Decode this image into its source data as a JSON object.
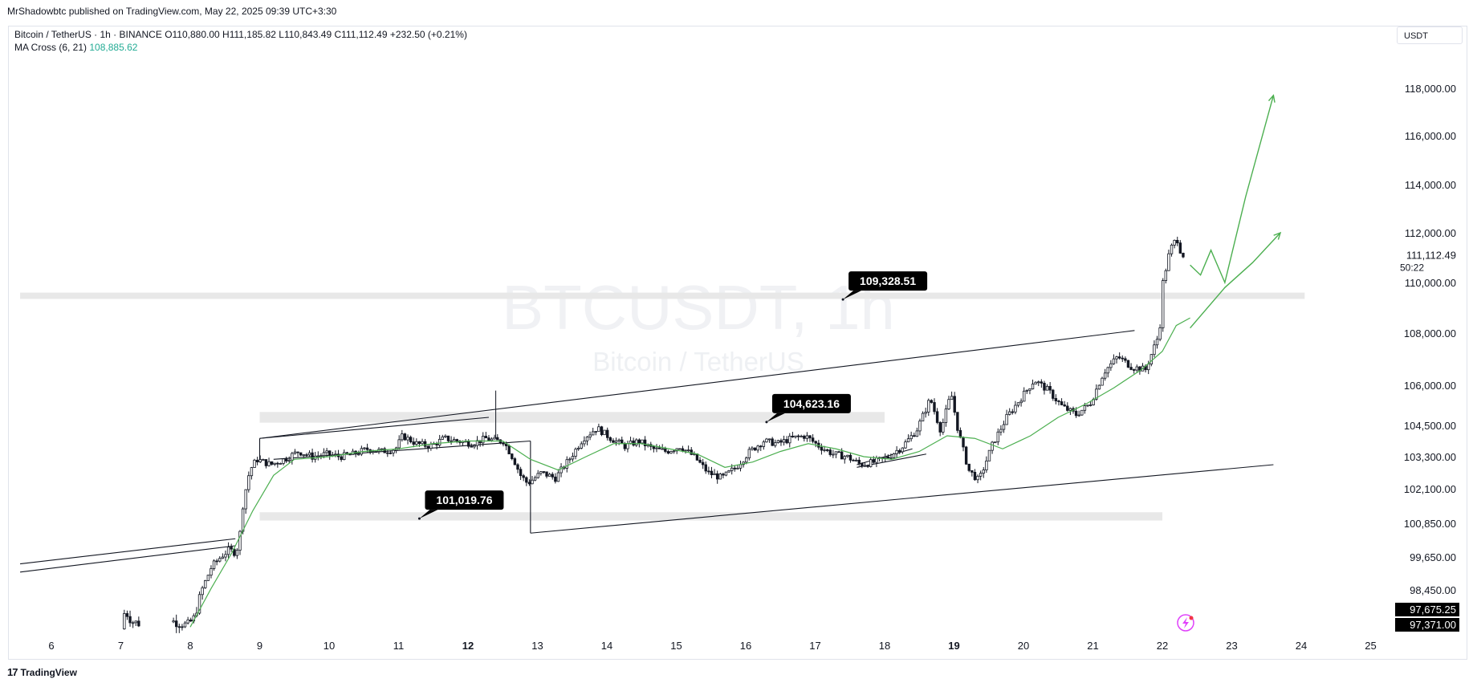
{
  "header": {
    "published": "MrShadowbtc published on TradingView.com, May 22, 2025 09:39 UTC+3:30"
  },
  "legend": {
    "symbol": "Bitcoin / TetherUS · 1h · BINANCE",
    "ohlc": "O110,880.00  H111,185.82  L110,843.49  C111,112.49  +232.50 (+0.21%)",
    "ma_label": "MA Cross (6, 21)",
    "ma_value": "108,885.62"
  },
  "currency_button": "USDT",
  "watermark": {
    "ticker": "BTCUSDT, 1h",
    "name": "Bitcoin / TetherUS"
  },
  "footer": {
    "brand": "TradingView",
    "logo": "17"
  },
  "colors": {
    "candle": "#131722",
    "ma": "#4caf50",
    "zone": "#e8e8e8",
    "label_bg": "#000000",
    "lightning": "#e040fb"
  },
  "price_labels": {
    "current": "111,112.49",
    "countdown": "50:22",
    "low_a": "97,675.25",
    "low_b": "97,371.00"
  },
  "chart_data": {
    "type": "candlestick",
    "symbol": "BTCUSDT",
    "interval": "1h",
    "y_ticks": [
      {
        "label": "118,000.00",
        "value": 118000
      },
      {
        "label": "116,000.00",
        "value": 116000
      },
      {
        "label": "114,000.00",
        "value": 114000
      },
      {
        "label": "112,000.00",
        "value": 112000
      },
      {
        "label": "110,000.00",
        "value": 110000
      },
      {
        "label": "108,000.00",
        "value": 108000
      },
      {
        "label": "106,000.00",
        "value": 106000
      },
      {
        "label": "104,500.00",
        "value": 104500
      },
      {
        "label": "103,300.00",
        "value": 103300
      },
      {
        "label": "102,100.00",
        "value": 102100
      },
      {
        "label": "100,850.00",
        "value": 100850
      },
      {
        "label": "99,650.00",
        "value": 99650
      },
      {
        "label": "98,450.00",
        "value": 98450
      }
    ],
    "x_ticks": [
      {
        "label": "6",
        "day": 6,
        "bold": false
      },
      {
        "label": "7",
        "day": 7,
        "bold": false
      },
      {
        "label": "8",
        "day": 8,
        "bold": false
      },
      {
        "label": "9",
        "day": 9,
        "bold": false
      },
      {
        "label": "10",
        "day": 10,
        "bold": false
      },
      {
        "label": "11",
        "day": 11,
        "bold": false
      },
      {
        "label": "12",
        "day": 12,
        "bold": true
      },
      {
        "label": "13",
        "day": 13,
        "bold": false
      },
      {
        "label": "14",
        "day": 14,
        "bold": false
      },
      {
        "label": "15",
        "day": 15,
        "bold": false
      },
      {
        "label": "16",
        "day": 16,
        "bold": false
      },
      {
        "label": "17",
        "day": 17,
        "bold": false
      },
      {
        "label": "18",
        "day": 18,
        "bold": false
      },
      {
        "label": "19",
        "day": 19,
        "bold": true
      },
      {
        "label": "20",
        "day": 20,
        "bold": false
      },
      {
        "label": "21",
        "day": 21,
        "bold": false
      },
      {
        "label": "22",
        "day": 22,
        "bold": false
      },
      {
        "label": "23",
        "day": 23,
        "bold": false
      },
      {
        "label": "24",
        "day": 24,
        "bold": false
      },
      {
        "label": "25",
        "day": 25,
        "bold": false
      }
    ],
    "price_path": [
      [
        7.05,
        97400
      ],
      [
        7.1,
        97900
      ],
      [
        7.2,
        97600
      ],
      [
        7.4,
        97500
      ],
      [
        7.6,
        97550
      ],
      [
        7.8,
        97600
      ],
      [
        8.0,
        97500
      ],
      [
        8.1,
        97700
      ],
      [
        8.2,
        98400
      ],
      [
        8.35,
        99300
      ],
      [
        8.5,
        99700
      ],
      [
        8.6,
        99900
      ],
      [
        8.7,
        99800
      ],
      [
        8.75,
        100300
      ],
      [
        8.8,
        101500
      ],
      [
        8.85,
        102200
      ],
      [
        8.9,
        102800
      ],
      [
        9.0,
        103200
      ],
      [
        9.2,
        103000
      ],
      [
        9.4,
        103200
      ],
      [
        9.6,
        103500
      ],
      [
        9.8,
        103300
      ],
      [
        10.0,
        103400
      ],
      [
        10.2,
        103300
      ],
      [
        10.4,
        103400
      ],
      [
        10.6,
        103600
      ],
      [
        10.8,
        103500
      ],
      [
        11.0,
        103600
      ],
      [
        11.1,
        104100
      ],
      [
        11.3,
        103800
      ],
      [
        11.5,
        103700
      ],
      [
        11.7,
        104000
      ],
      [
        11.9,
        103900
      ],
      [
        12.1,
        103800
      ],
      [
        12.3,
        104000
      ],
      [
        12.45,
        103900
      ],
      [
        12.55,
        103900
      ],
      [
        12.7,
        103200
      ],
      [
        12.8,
        102600
      ],
      [
        12.9,
        102300
      ],
      [
        13.1,
        102700
      ],
      [
        13.3,
        102500
      ],
      [
        13.5,
        103200
      ],
      [
        13.7,
        104000
      ],
      [
        13.9,
        104400
      ],
      [
        14.1,
        104000
      ],
      [
        14.3,
        103700
      ],
      [
        14.5,
        103900
      ],
      [
        14.7,
        103600
      ],
      [
        14.9,
        103500
      ],
      [
        15.1,
        103700
      ],
      [
        15.3,
        103300
      ],
      [
        15.5,
        102700
      ],
      [
        15.7,
        102500
      ],
      [
        15.9,
        102900
      ],
      [
        16.1,
        103500
      ],
      [
        16.3,
        103900
      ],
      [
        16.5,
        103800
      ],
      [
        16.7,
        104000
      ],
      [
        16.9,
        104100
      ],
      [
        17.1,
        103700
      ],
      [
        17.3,
        103400
      ],
      [
        17.5,
        103300
      ],
      [
        17.7,
        103000
      ],
      [
        17.9,
        103100
      ],
      [
        18.1,
        103300
      ],
      [
        18.3,
        103700
      ],
      [
        18.5,
        104300
      ],
      [
        18.7,
        105500
      ],
      [
        18.85,
        104300
      ],
      [
        19.0,
        105700
      ],
      [
        19.1,
        104300
      ],
      [
        19.25,
        102800
      ],
      [
        19.4,
        102400
      ],
      [
        19.6,
        103800
      ],
      [
        19.8,
        104800
      ],
      [
        20.0,
        105500
      ],
      [
        20.2,
        106200
      ],
      [
        20.4,
        105800
      ],
      [
        20.6,
        105200
      ],
      [
        20.8,
        104900
      ],
      [
        21.0,
        105300
      ],
      [
        21.2,
        106500
      ],
      [
        21.4,
        107100
      ],
      [
        21.6,
        106700
      ],
      [
        21.8,
        106600
      ],
      [
        22.0,
        108000
      ],
      [
        22.05,
        110000
      ],
      [
        22.15,
        111300
      ],
      [
        22.25,
        111800
      ],
      [
        22.32,
        111100
      ]
    ],
    "ma_line": [
      [
        8.0,
        97450
      ],
      [
        8.3,
        98500
      ],
      [
        8.6,
        99800
      ],
      [
        8.9,
        101300
      ],
      [
        9.2,
        102600
      ],
      [
        9.5,
        103200
      ],
      [
        10.0,
        103300
      ],
      [
        10.5,
        103500
      ],
      [
        11.0,
        103600
      ],
      [
        11.5,
        103800
      ],
      [
        12.0,
        103900
      ],
      [
        12.5,
        103900
      ],
      [
        12.9,
        103200
      ],
      [
        13.3,
        102800
      ],
      [
        13.7,
        103300
      ],
      [
        14.1,
        103800
      ],
      [
        14.5,
        103800
      ],
      [
        14.9,
        103600
      ],
      [
        15.3,
        103400
      ],
      [
        15.7,
        102900
      ],
      [
        16.1,
        103100
      ],
      [
        16.5,
        103500
      ],
      [
        16.9,
        103800
      ],
      [
        17.3,
        103600
      ],
      [
        17.7,
        103300
      ],
      [
        18.1,
        103200
      ],
      [
        18.5,
        103500
      ],
      [
        18.9,
        104100
      ],
      [
        19.3,
        104000
      ],
      [
        19.7,
        103600
      ],
      [
        20.1,
        104100
      ],
      [
        20.5,
        104800
      ],
      [
        20.9,
        105300
      ],
      [
        21.3,
        105900
      ],
      [
        21.7,
        106600
      ],
      [
        22.0,
        107300
      ],
      [
        22.2,
        108300
      ],
      [
        22.4,
        108600
      ]
    ],
    "drawings": {
      "rising_channel": {
        "upper": [
          [
            9.0,
            104000
          ],
          [
            21.6,
            108100
          ]
        ],
        "lower": [
          [
            12.9,
            100500
          ],
          [
            23.6,
            103000
          ]
        ]
      },
      "flag": {
        "upper": [
          [
            9.0,
            104000
          ],
          [
            12.3,
            104800
          ]
        ],
        "lower": [
          [
            9.2,
            103200
          ],
          [
            12.9,
            103900
          ]
        ]
      },
      "long_term_lines": [
        [
          [
            5.55,
            99400
          ],
          [
            8.65,
            100300
          ]
        ],
        [
          [
            5.55,
            99100
          ],
          [
            8.65,
            100050
          ]
        ]
      ],
      "small_wedge": [
        [
          [
            17.6,
            103000
          ],
          [
            18.4,
            103600
          ]
        ],
        [
          [
            17.6,
            102900
          ],
          [
            18.6,
            103400
          ]
        ]
      ],
      "zones": [
        {
          "from_day": 5.55,
          "to_day": 24.05,
          "top": 109600,
          "bottom": 109350
        },
        {
          "from_day": 9.0,
          "to_day": 18.0,
          "top": 105000,
          "bottom": 104600
        },
        {
          "from_day": 9.0,
          "to_day": 22.0,
          "top": 101250,
          "bottom": 100950
        }
      ],
      "callouts": [
        {
          "text": "109,328.51",
          "day": 17.4,
          "price": 109328.51
        },
        {
          "text": "104,623.16",
          "day": 16.3,
          "price": 104623.16
        },
        {
          "text": "101,019.76",
          "day": 11.3,
          "price": 101019.76
        }
      ],
      "projections": [
        [
          [
            22.4,
            110700
          ],
          [
            22.55,
            110300
          ],
          [
            22.7,
            111300
          ],
          [
            22.9,
            110000
          ],
          [
            23.2,
            113500
          ],
          [
            23.6,
            117700
          ]
        ],
        [
          [
            22.4,
            108200
          ],
          [
            22.9,
            109800
          ],
          [
            23.3,
            110800
          ],
          [
            23.7,
            112000
          ]
        ]
      ]
    }
  }
}
